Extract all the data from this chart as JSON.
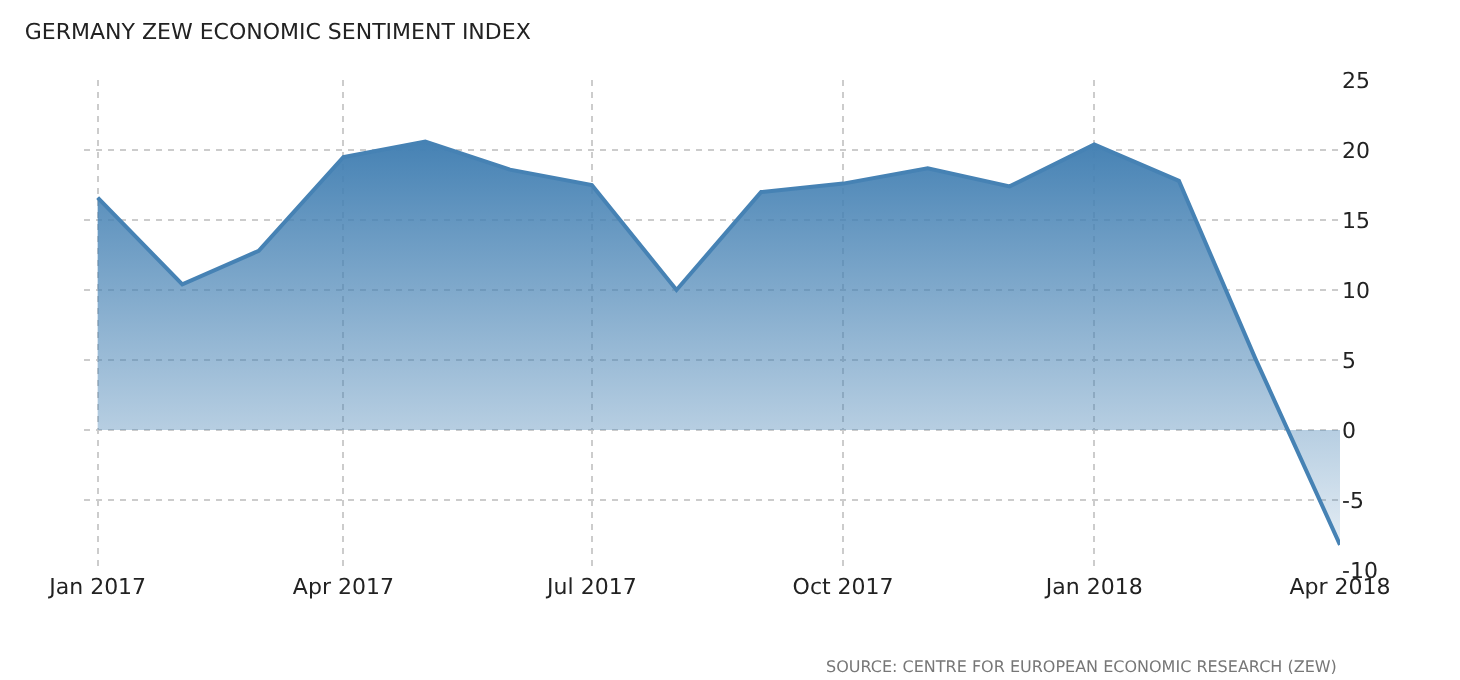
{
  "chart_data": {
    "type": "area",
    "title": "GERMANY ZEW ECONOMIC SENTIMENT INDEX",
    "x": [
      "2017-01",
      "2017-02",
      "2017-03",
      "2017-04",
      "2017-05",
      "2017-06",
      "2017-07",
      "2017-08",
      "2017-09",
      "2017-10",
      "2017-11",
      "2017-12",
      "2018-01",
      "2018-02",
      "2018-03",
      "2018-04"
    ],
    "series": [
      {
        "color": "#4682b4",
        "values": [
          16.6,
          10.4,
          12.8,
          19.5,
          20.6,
          18.6,
          17.5,
          10.0,
          17.0,
          17.6,
          18.7,
          17.4,
          20.4,
          17.8,
          5.1,
          -8.2
        ]
      }
    ],
    "xlim": [
      "2016-12-27",
      "2018-04-01"
    ],
    "xticks": [
      {
        "value": "2017-01",
        "label": "Jan 2017"
      },
      {
        "value": "2017-04",
        "label": "Apr 2017"
      },
      {
        "value": "2017-07",
        "label": "Jul 2017"
      },
      {
        "value": "2017-10",
        "label": "Oct 2017"
      },
      {
        "value": "2018-01",
        "label": "Jan 2018"
      },
      {
        "value": "2018-04",
        "label": "Apr 2018"
      }
    ],
    "ylim": [
      -10,
      25
    ],
    "yticks": [
      -10,
      -5,
      0,
      5,
      10,
      15,
      20,
      25
    ],
    "grid": true,
    "marker": "none",
    "line_style": "solid",
    "annotations": [
      "SOURCE: CENTRE FOR EUROPEAN ECONOMIC RESEARCH (ZEW)"
    ]
  }
}
